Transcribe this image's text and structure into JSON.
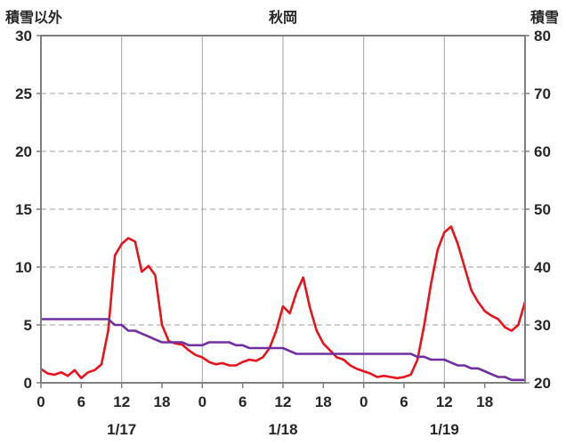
{
  "chart_data": {
    "type": "line",
    "title": "秋岡",
    "left_axis": {
      "label": "積雪以外",
      "min": 0,
      "max": 30,
      "ticks": [
        0,
        5,
        10,
        15,
        20,
        25,
        30
      ]
    },
    "right_axis": {
      "label": "積雪",
      "min": 20,
      "max": 80,
      "ticks": [
        20,
        30,
        40,
        50,
        60,
        70,
        80
      ]
    },
    "x_domain": [
      0,
      72
    ],
    "x_unit": "hour",
    "x_tick_hours": [
      0,
      6,
      12,
      18,
      24,
      30,
      36,
      42,
      48,
      54,
      60,
      66
    ],
    "x_tick_labels": [
      "0",
      "6",
      "12",
      "18",
      "0",
      "6",
      "12",
      "18",
      "0",
      "6",
      "12",
      "18"
    ],
    "vertical_gridlines_hours": [
      12,
      24,
      36,
      48,
      60
    ],
    "date_labels": [
      "1/17",
      "1/18",
      "1/19"
    ],
    "grid": {
      "horizontal": "dashed",
      "vertical": "solid"
    },
    "frame_color": "#7f7f7f",
    "grid_color": "#a3a3a3",
    "text_color": "#262626",
    "series": [
      {
        "name": "積雪以外",
        "axis": "left",
        "color": "#e8131d",
        "values": [
          1.2,
          0.8,
          0.7,
          0.9,
          0.6,
          1.1,
          0.4,
          0.9,
          1.1,
          1.6,
          4.5,
          11.0,
          12.0,
          12.5,
          12.2,
          9.6,
          10.1,
          9.3,
          5.0,
          3.6,
          3.4,
          3.3,
          2.8,
          2.4,
          2.2,
          1.8,
          1.6,
          1.7,
          1.5,
          1.5,
          1.8,
          2.0,
          1.9,
          2.2,
          3.0,
          4.5,
          6.6,
          6.0,
          7.8,
          9.1,
          6.5,
          4.5,
          3.4,
          2.8,
          2.2,
          2.0,
          1.5,
          1.2,
          1.0,
          0.8,
          0.5,
          0.6,
          0.5,
          0.4,
          0.5,
          0.7,
          2.0,
          5.0,
          8.5,
          11.5,
          13.0,
          13.5,
          12.0,
          10.0,
          8.0,
          7.0,
          6.2,
          5.8,
          5.5,
          4.8,
          4.5,
          5.0,
          7.0
        ]
      },
      {
        "name": "積雪",
        "axis": "right",
        "color": "#7030a0",
        "values": [
          31,
          31,
          31,
          31,
          31,
          31,
          31,
          31,
          31,
          31,
          31,
          30,
          30,
          29,
          29,
          28.5,
          28,
          27.5,
          27,
          27,
          27,
          27,
          26.5,
          26.5,
          26.5,
          27,
          27,
          27,
          27,
          26.5,
          26.5,
          26,
          26,
          26,
          26,
          26,
          26,
          25.5,
          25,
          25,
          25,
          25,
          25,
          25,
          25,
          25,
          25,
          25,
          25,
          25,
          25,
          25,
          25,
          25,
          25,
          25,
          24.5,
          24.5,
          24,
          24,
          24,
          23.5,
          23,
          23,
          22.5,
          22.5,
          22,
          21.5,
          21,
          21,
          20.5,
          20.5,
          20.5
        ]
      }
    ]
  }
}
